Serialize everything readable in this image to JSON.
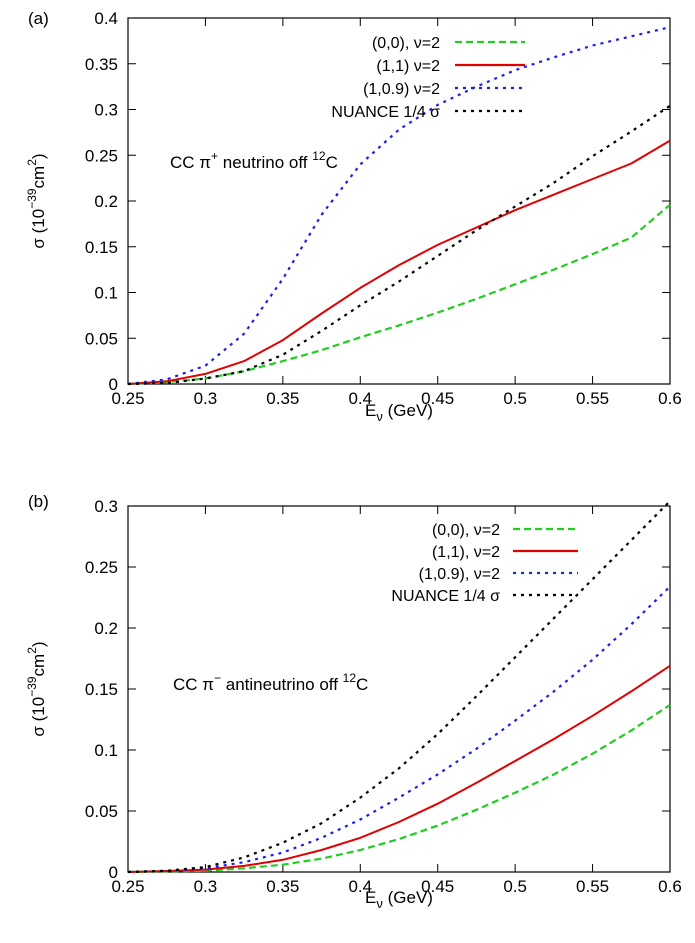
{
  "chart_data": [
    {
      "type": "line",
      "panel_label": "(a)",
      "annotation": "CC π⁺ neutrino off ¹²C",
      "xlabel": "Eν (GeV)",
      "ylabel": "σ (10⁻³⁹cm²)",
      "xlim": [
        0.25,
        0.6
      ],
      "ylim": [
        0,
        0.4
      ],
      "xticks": [
        "0.25",
        "0.3",
        "0.35",
        "0.4",
        "0.45",
        "0.5",
        "0.55",
        "0.6"
      ],
      "yticks": [
        "0",
        "0.05",
        "0.1",
        "0.15",
        "0.2",
        "0.25",
        "0.3",
        "0.35",
        "0.4"
      ],
      "legend_position": "top",
      "grid": false,
      "x": [
        0.25,
        0.275,
        0.3,
        0.325,
        0.35,
        0.375,
        0.4,
        0.425,
        0.45,
        0.475,
        0.5,
        0.525,
        0.55,
        0.575,
        0.6
      ],
      "series": [
        {
          "name": "(0,0), ν=2",
          "color": "#22cc22",
          "dash": "dashed",
          "values": [
            0.0,
            0.002,
            0.006,
            0.014,
            0.025,
            0.037,
            0.051,
            0.064,
            0.078,
            0.093,
            0.109,
            0.125,
            0.142,
            0.16,
            0.196
          ]
        },
        {
          "name": "(1,1) ν=2",
          "color": "#e00000",
          "dash": "solid",
          "values": [
            0.0,
            0.003,
            0.011,
            0.025,
            0.048,
            0.077,
            0.105,
            0.13,
            0.152,
            0.171,
            0.19,
            0.207,
            0.224,
            0.241,
            0.266
          ]
        },
        {
          "name": "(1,0.9) ν=2",
          "color": "#1f1fe6",
          "dash": "dotted",
          "values": [
            0.0,
            0.005,
            0.02,
            0.055,
            0.115,
            0.185,
            0.24,
            0.278,
            0.305,
            0.325,
            0.343,
            0.357,
            0.37,
            0.38,
            0.39
          ]
        },
        {
          "name": "NUANCE 1/4 σ",
          "color": "#000000",
          "dash": "dotted",
          "values": [
            0.0,
            0.001,
            0.006,
            0.014,
            0.032,
            0.058,
            0.086,
            0.112,
            0.14,
            0.168,
            0.194,
            0.22,
            0.249,
            0.276,
            0.304
          ]
        }
      ]
    },
    {
      "type": "line",
      "panel_label": "(b)",
      "annotation": "CC π⁻ antineutrino off ¹²C",
      "xlabel": "Eν (GeV)",
      "ylabel": "σ (10⁻³⁹cm²)",
      "xlim": [
        0.25,
        0.6
      ],
      "ylim": [
        0,
        0.3
      ],
      "xticks": [
        "0.25",
        "0.3",
        "0.35",
        "0.4",
        "0.45",
        "0.5",
        "0.55",
        "0.6"
      ],
      "yticks": [
        "0",
        "0.05",
        "0.1",
        "0.15",
        "0.2",
        "0.25",
        "0.3"
      ],
      "legend_position": "top-right",
      "grid": false,
      "x": [
        0.25,
        0.275,
        0.3,
        0.325,
        0.35,
        0.375,
        0.4,
        0.425,
        0.45,
        0.475,
        0.5,
        0.525,
        0.55,
        0.575,
        0.6
      ],
      "series": [
        {
          "name": "(0,0), ν=2",
          "color": "#22cc22",
          "dash": "dashed",
          "values": [
            0.0,
            0.0005,
            0.001,
            0.003,
            0.006,
            0.011,
            0.018,
            0.027,
            0.038,
            0.051,
            0.065,
            0.08,
            0.097,
            0.116,
            0.137
          ]
        },
        {
          "name": "(1,1), ν=2",
          "color": "#e00000",
          "dash": "solid",
          "values": [
            0.0,
            0.0008,
            0.002,
            0.005,
            0.01,
            0.018,
            0.028,
            0.041,
            0.056,
            0.073,
            0.091,
            0.109,
            0.128,
            0.148,
            0.169
          ]
        },
        {
          "name": "(1,0.9), ν=2",
          "color": "#1f1fe6",
          "dash": "dotted",
          "values": [
            0.0,
            0.001,
            0.003,
            0.008,
            0.016,
            0.028,
            0.043,
            0.061,
            0.08,
            0.101,
            0.124,
            0.148,
            0.174,
            0.203,
            0.234
          ]
        },
        {
          "name": "NUANCE 1/4 σ",
          "color": "#000000",
          "dash": "dotted",
          "values": [
            0.0,
            0.001,
            0.004,
            0.012,
            0.024,
            0.04,
            0.061,
            0.085,
            0.113,
            0.144,
            0.176,
            0.208,
            0.24,
            0.272,
            0.304
          ]
        }
      ]
    }
  ]
}
